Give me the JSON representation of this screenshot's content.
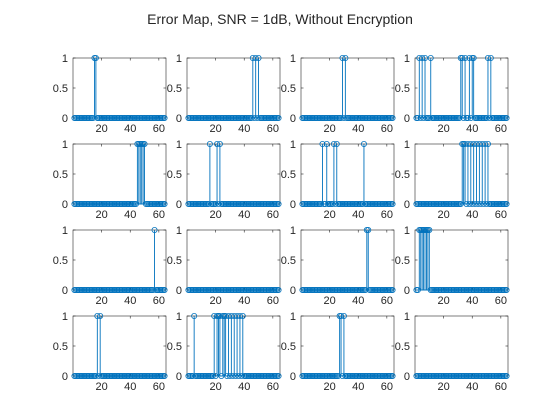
{
  "figure": {
    "title": "Error Map, SNR = 1dB, Without Encryption"
  },
  "colors": {
    "series": "#0072BD",
    "axes": "#262626",
    "background": "#ffffff"
  },
  "chart_data": [
    {
      "type": "stem",
      "x_range": [
        1,
        64
      ],
      "xlim": [
        0,
        65
      ],
      "ylim": [
        0,
        1
      ],
      "xticks": [
        20,
        40,
        60
      ],
      "yticks": [
        0,
        0.5,
        1
      ],
      "grid": false,
      "ones": [
        15,
        16
      ]
    },
    {
      "type": "stem",
      "x_range": [
        1,
        64
      ],
      "xlim": [
        0,
        65
      ],
      "ylim": [
        0,
        1
      ],
      "xticks": [
        20,
        40,
        60
      ],
      "yticks": [
        0,
        0.5,
        1
      ],
      "grid": false,
      "ones": [
        46,
        48,
        50
      ]
    },
    {
      "type": "stem",
      "x_range": [
        1,
        64
      ],
      "xlim": [
        0,
        65
      ],
      "ylim": [
        0,
        1
      ],
      "xticks": [
        20,
        40,
        60
      ],
      "yticks": [
        0,
        0.5,
        1
      ],
      "grid": false,
      "ones": [
        29,
        31
      ]
    },
    {
      "type": "stem",
      "x_range": [
        1,
        64
      ],
      "xlim": [
        0,
        65
      ],
      "ylim": [
        0,
        1
      ],
      "xticks": [
        20,
        40,
        60
      ],
      "yticks": [
        0,
        0.5,
        1
      ],
      "grid": false,
      "ones": [
        3,
        5,
        7,
        11,
        32,
        33,
        35,
        38,
        40,
        41,
        51,
        53
      ]
    },
    {
      "type": "stem",
      "x_range": [
        1,
        64
      ],
      "xlim": [
        0,
        65
      ],
      "ylim": [
        0,
        1
      ],
      "xticks": [
        20,
        40,
        60
      ],
      "yticks": [
        0,
        0.5,
        1
      ],
      "grid": false,
      "ones": [
        45,
        46,
        47,
        48,
        49,
        50
      ]
    },
    {
      "type": "stem",
      "x_range": [
        1,
        64
      ],
      "xlim": [
        0,
        65
      ],
      "ylim": [
        0,
        1
      ],
      "xticks": [
        20,
        40,
        60
      ],
      "yticks": [
        0,
        0.5,
        1
      ],
      "grid": false,
      "ones": [
        16,
        21,
        23
      ]
    },
    {
      "type": "stem",
      "x_range": [
        1,
        64
      ],
      "xlim": [
        0,
        65
      ],
      "ylim": [
        0,
        1
      ],
      "xticks": [
        20,
        40,
        60
      ],
      "yticks": [
        0,
        0.5,
        1
      ],
      "grid": false,
      "ones": [
        15,
        18,
        23,
        25,
        44
      ]
    },
    {
      "type": "stem",
      "x_range": [
        1,
        64
      ],
      "xlim": [
        0,
        65
      ],
      "ylim": [
        0,
        1
      ],
      "xticks": [
        20,
        40,
        60
      ],
      "yticks": [
        0,
        0.5,
        1
      ],
      "grid": false,
      "ones": [
        33,
        34,
        35,
        37,
        39,
        41,
        43,
        45,
        47,
        49,
        51
      ]
    },
    {
      "type": "stem",
      "x_range": [
        1,
        64
      ],
      "xlim": [
        0,
        65
      ],
      "ylim": [
        0,
        1
      ],
      "xticks": [
        20,
        40,
        60
      ],
      "yticks": [
        0,
        0.5,
        1
      ],
      "grid": false,
      "ones": [
        57
      ]
    },
    {
      "type": "stem",
      "x_range": [
        1,
        64
      ],
      "xlim": [
        0,
        65
      ],
      "ylim": [
        0,
        1
      ],
      "xticks": [
        20,
        40,
        60
      ],
      "yticks": [
        0,
        0.5,
        1
      ],
      "grid": false,
      "ones": []
    },
    {
      "type": "stem",
      "x_range": [
        1,
        64
      ],
      "xlim": [
        0,
        65
      ],
      "ylim": [
        0,
        1
      ],
      "xticks": [
        20,
        40,
        60
      ],
      "yticks": [
        0,
        0.5,
        1
      ],
      "grid": false,
      "ones": [
        46,
        47
      ]
    },
    {
      "type": "stem",
      "x_range": [
        1,
        64
      ],
      "xlim": [
        0,
        65
      ],
      "ylim": [
        0,
        1
      ],
      "xticks": [
        20,
        40,
        60
      ],
      "yticks": [
        0,
        0.5,
        1
      ],
      "grid": false,
      "ones": [
        3,
        4,
        5,
        6,
        7,
        8,
        9,
        10
      ]
    },
    {
      "type": "stem",
      "x_range": [
        1,
        64
      ],
      "xlim": [
        0,
        65
      ],
      "ylim": [
        0,
        1
      ],
      "xticks": [
        20,
        40,
        60
      ],
      "yticks": [
        0,
        0.5,
        1
      ],
      "grid": false,
      "ones": [
        17,
        19
      ]
    },
    {
      "type": "stem",
      "x_range": [
        1,
        64
      ],
      "xlim": [
        0,
        65
      ],
      "ylim": [
        0,
        1
      ],
      "xticks": [
        20,
        40,
        60
      ],
      "yticks": [
        0,
        0.5,
        1
      ],
      "grid": false,
      "ones": [
        5,
        19,
        21,
        22,
        23,
        25,
        26,
        27,
        29,
        31,
        33,
        35,
        37,
        39
      ]
    },
    {
      "type": "stem",
      "x_range": [
        1,
        64
      ],
      "xlim": [
        0,
        65
      ],
      "ylim": [
        0,
        1
      ],
      "xticks": [
        20,
        40,
        60
      ],
      "yticks": [
        0,
        0.5,
        1
      ],
      "grid": false,
      "ones": [
        27,
        28,
        30
      ]
    },
    {
      "type": "stem",
      "x_range": [
        1,
        64
      ],
      "xlim": [
        0,
        65
      ],
      "ylim": [
        0,
        1
      ],
      "xticks": [
        20,
        40,
        60
      ],
      "yticks": [
        0,
        0.5,
        1
      ],
      "grid": false,
      "ones": []
    }
  ]
}
